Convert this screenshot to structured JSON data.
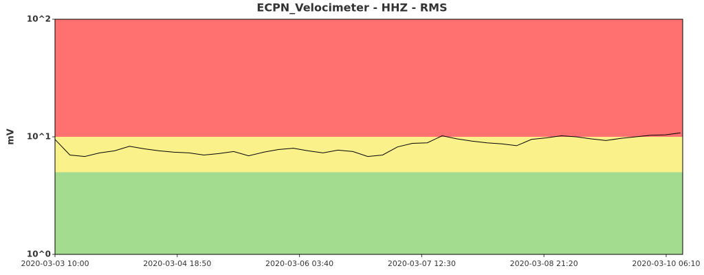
{
  "chart_data": {
    "type": "line",
    "title": "ECPN_Velocimeter - HHZ - RMS",
    "y_label": "mV",
    "log_y": true,
    "color": "#000000",
    "bands": [
      {
        "from": 1,
        "to": 5,
        "color": "#a3dc8f"
      },
      {
        "from": 5,
        "to": 10,
        "color": "#fbf18b"
      },
      {
        "from": 10,
        "to": 100,
        "color": "#ff7070"
      }
    ],
    "ylim": [
      1,
      100
    ],
    "yticks": [
      {
        "value": 1,
        "label": "10^0"
      },
      {
        "value": 10,
        "label": "10^1"
      },
      {
        "value": 100,
        "label": "10^2"
      }
    ],
    "xlim": [
      "2020-03-03 10:00",
      "2020-03-10 10:36"
    ],
    "xticks": [
      "2020-03-03 10:00",
      "2020-03-04 18:50",
      "2020-03-06 03:40",
      "2020-03-07 12:30",
      "2020-03-08 21:20",
      "2020-03-10 06:10"
    ],
    "x": [
      "2020-03-03 10:00",
      "2020-03-03 14:00",
      "2020-03-03 18:00",
      "2020-03-03 22:00",
      "2020-03-04 02:00",
      "2020-03-04 06:00",
      "2020-03-04 10:00",
      "2020-03-04 14:00",
      "2020-03-04 18:00",
      "2020-03-04 22:00",
      "2020-03-05 02:00",
      "2020-03-05 06:00",
      "2020-03-05 10:00",
      "2020-03-05 14:00",
      "2020-03-05 18:00",
      "2020-03-05 22:00",
      "2020-03-06 02:00",
      "2020-03-06 06:00",
      "2020-03-06 10:00",
      "2020-03-06 14:00",
      "2020-03-06 18:00",
      "2020-03-06 22:00",
      "2020-03-07 02:00",
      "2020-03-07 06:00",
      "2020-03-07 10:00",
      "2020-03-07 14:00",
      "2020-03-07 18:00",
      "2020-03-07 22:00",
      "2020-03-08 02:00",
      "2020-03-08 06:00",
      "2020-03-08 10:00",
      "2020-03-08 14:00",
      "2020-03-08 18:00",
      "2020-03-08 22:00",
      "2020-03-09 02:00",
      "2020-03-09 06:00",
      "2020-03-09 10:00",
      "2020-03-09 14:00",
      "2020-03-09 18:00",
      "2020-03-09 22:00",
      "2020-03-10 02:00",
      "2020-03-10 06:00",
      "2020-03-10 10:00"
    ],
    "values": [
      9.5,
      7.0,
      6.8,
      7.3,
      7.6,
      8.3,
      7.9,
      7.6,
      7.4,
      7.3,
      7.0,
      7.2,
      7.5,
      6.9,
      7.4,
      7.8,
      8.0,
      7.6,
      7.3,
      7.7,
      7.5,
      6.8,
      7.0,
      8.2,
      8.8,
      8.9,
      10.2,
      9.6,
      9.2,
      8.9,
      8.7,
      8.4,
      9.5,
      9.8,
      10.2,
      10.0,
      9.6,
      9.3,
      9.7,
      10.0,
      10.3,
      10.4,
      10.8
    ]
  }
}
